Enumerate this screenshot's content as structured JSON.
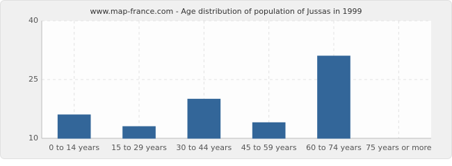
{
  "chart_data": {
    "type": "bar",
    "title": "www.map-france.com - Age distribution of population of Jussas in 1999",
    "categories": [
      "0 to 14 years",
      "15 to 29 years",
      "30 to 44 years",
      "45 to 59 years",
      "60 to 74 years",
      "75 years or more"
    ],
    "values": [
      16,
      13,
      20,
      14,
      31,
      10
    ],
    "color": "#336699",
    "ylim": [
      10,
      40
    ],
    "yticks": [
      10,
      25,
      40
    ],
    "grid": true
  }
}
